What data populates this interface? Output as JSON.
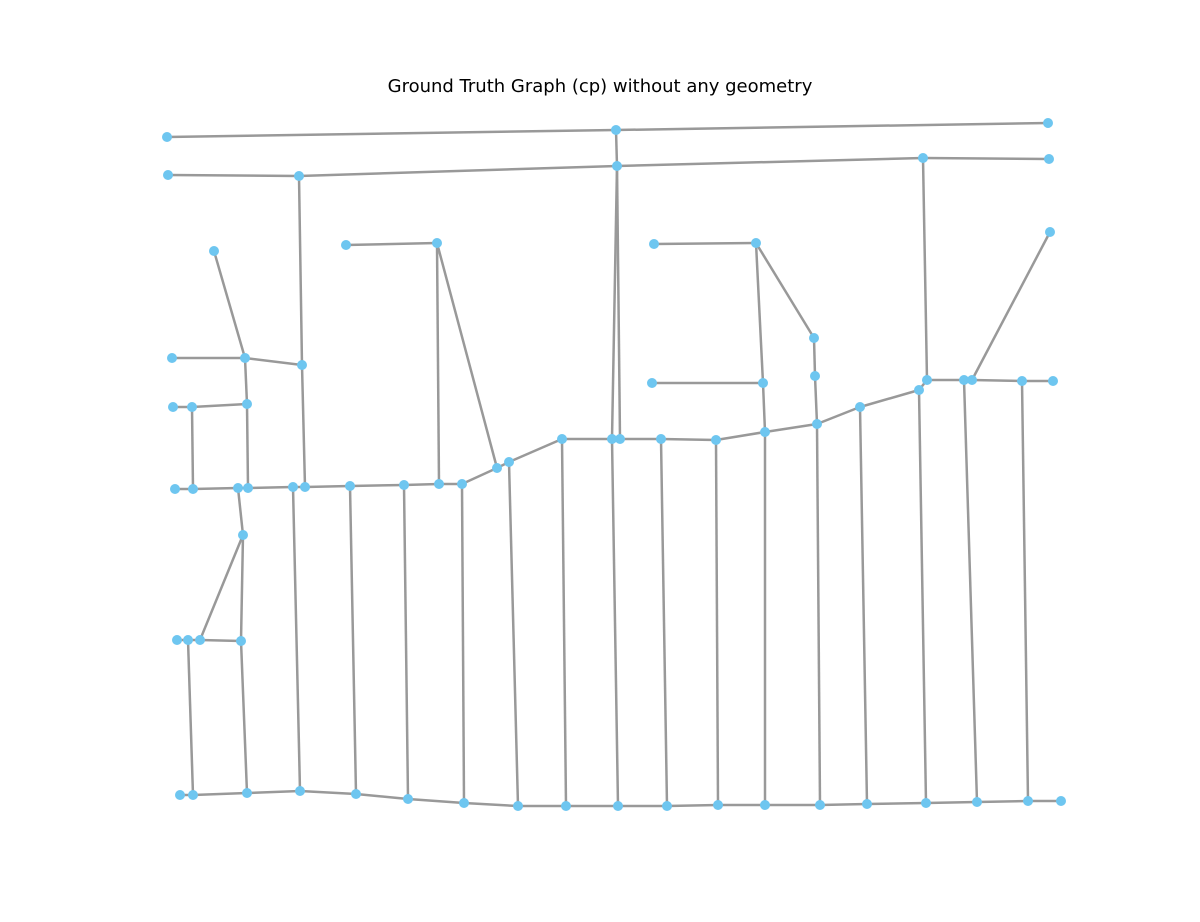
{
  "title": "Ground Truth Graph (cp) without any geometry",
  "colors": {
    "edge": "#999999",
    "node": "#6ec6f0",
    "background": "#ffffff"
  },
  "graph": {
    "nodes": [
      [
        "n1",
        167,
        137
      ],
      [
        "n2",
        616,
        130
      ],
      [
        "n3",
        1048,
        123
      ],
      [
        "n4",
        168,
        175
      ],
      [
        "n5",
        299,
        176
      ],
      [
        "n6",
        617,
        166
      ],
      [
        "n7",
        923,
        158
      ],
      [
        "n8",
        1049,
        159
      ],
      [
        "n9",
        214,
        251
      ],
      [
        "n10",
        346,
        245
      ],
      [
        "n11",
        437,
        243
      ],
      [
        "n12",
        654,
        244
      ],
      [
        "n13",
        756,
        243
      ],
      [
        "n14",
        1050,
        232
      ],
      [
        "n15",
        172,
        358
      ],
      [
        "n16",
        245,
        358
      ],
      [
        "n17",
        302,
        365
      ],
      [
        "n18",
        814,
        338
      ],
      [
        "n19",
        815,
        376
      ],
      [
        "n20",
        652,
        383
      ],
      [
        "n21",
        763,
        383
      ],
      [
        "n22",
        927,
        380
      ],
      [
        "n23",
        964,
        380
      ],
      [
        "n24",
        972,
        380
      ],
      [
        "n25",
        1022,
        381
      ],
      [
        "n26",
        1053,
        381
      ],
      [
        "n27",
        173,
        407
      ],
      [
        "n28",
        192,
        407
      ],
      [
        "n29",
        247,
        404
      ],
      [
        "n30",
        919,
        390
      ],
      [
        "n31",
        860,
        407
      ],
      [
        "n32",
        817,
        424
      ],
      [
        "n33",
        765,
        432
      ],
      [
        "n34",
        716,
        440
      ],
      [
        "n35",
        661,
        439
      ],
      [
        "n36",
        620,
        439
      ],
      [
        "n37",
        612,
        439
      ],
      [
        "n38",
        562,
        439
      ],
      [
        "n39",
        509,
        462
      ],
      [
        "n40",
        497,
        468
      ],
      [
        "n41",
        175,
        489
      ],
      [
        "n42",
        193,
        489
      ],
      [
        "n43",
        238,
        488
      ],
      [
        "n44",
        248,
        488
      ],
      [
        "n45",
        293,
        487
      ],
      [
        "n46",
        305,
        487
      ],
      [
        "n47",
        350,
        486
      ],
      [
        "n48",
        404,
        485
      ],
      [
        "n49",
        439,
        484
      ],
      [
        "n50",
        462,
        484
      ],
      [
        "n51",
        243,
        535
      ],
      [
        "n52",
        177,
        640
      ],
      [
        "n53",
        188,
        640
      ],
      [
        "n54",
        200,
        640
      ],
      [
        "n55",
        241,
        641
      ],
      [
        "n56",
        180,
        795
      ],
      [
        "n57",
        193,
        795
      ],
      [
        "n58",
        247,
        793
      ],
      [
        "n59",
        300,
        791
      ],
      [
        "n60",
        356,
        794
      ],
      [
        "n61",
        408,
        799
      ],
      [
        "n62",
        464,
        803
      ],
      [
        "n63",
        518,
        806
      ],
      [
        "n64",
        566,
        806
      ],
      [
        "n65",
        618,
        806
      ],
      [
        "n66",
        667,
        806
      ],
      [
        "n67",
        718,
        805
      ],
      [
        "n68",
        765,
        805
      ],
      [
        "n69",
        820,
        805
      ],
      [
        "n70",
        867,
        804
      ],
      [
        "n71",
        926,
        803
      ],
      [
        "n72",
        977,
        802
      ],
      [
        "n73",
        1028,
        801
      ],
      [
        "n74",
        1061,
        801
      ]
    ],
    "edges": [
      [
        "n1",
        "n2"
      ],
      [
        "n2",
        "n3"
      ],
      [
        "n2",
        "n6"
      ],
      [
        "n4",
        "n5"
      ],
      [
        "n5",
        "n6"
      ],
      [
        "n6",
        "n7"
      ],
      [
        "n7",
        "n8"
      ],
      [
        "n5",
        "n17"
      ],
      [
        "n17",
        "n16"
      ],
      [
        "n15",
        "n16"
      ],
      [
        "n9",
        "n16"
      ],
      [
        "n16",
        "n29"
      ],
      [
        "n28",
        "n29"
      ],
      [
        "n27",
        "n28"
      ],
      [
        "n28",
        "n42"
      ],
      [
        "n29",
        "n44"
      ],
      [
        "n17",
        "n46"
      ],
      [
        "n41",
        "n42"
      ],
      [
        "n42",
        "n43"
      ],
      [
        "n43",
        "n44"
      ],
      [
        "n44",
        "n45"
      ],
      [
        "n45",
        "n46"
      ],
      [
        "n46",
        "n47"
      ],
      [
        "n47",
        "n48"
      ],
      [
        "n48",
        "n49"
      ],
      [
        "n49",
        "n50"
      ],
      [
        "n50",
        "n40"
      ],
      [
        "n40",
        "n39"
      ],
      [
        "n39",
        "n38"
      ],
      [
        "n38",
        "n37"
      ],
      [
        "n37",
        "n36"
      ],
      [
        "n36",
        "n35"
      ],
      [
        "n35",
        "n34"
      ],
      [
        "n34",
        "n33"
      ],
      [
        "n33",
        "n32"
      ],
      [
        "n32",
        "n31"
      ],
      [
        "n31",
        "n30"
      ],
      [
        "n30",
        "n22"
      ],
      [
        "n10",
        "n11"
      ],
      [
        "n11",
        "n49"
      ],
      [
        "n11",
        "n40"
      ],
      [
        "n6",
        "n37"
      ],
      [
        "n6",
        "n36"
      ],
      [
        "n12",
        "n13"
      ],
      [
        "n13",
        "n18"
      ],
      [
        "n18",
        "n19"
      ],
      [
        "n13",
        "n21"
      ],
      [
        "n21",
        "n33"
      ],
      [
        "n19",
        "n32"
      ],
      [
        "n20",
        "n21"
      ],
      [
        "n7",
        "n22"
      ],
      [
        "n22",
        "n23"
      ],
      [
        "n23",
        "n24"
      ],
      [
        "n24",
        "n25"
      ],
      [
        "n25",
        "n26"
      ],
      [
        "n14",
        "n24"
      ],
      [
        "n43",
        "n51"
      ],
      [
        "n51",
        "n54"
      ],
      [
        "n51",
        "n55"
      ],
      [
        "n52",
        "n53"
      ],
      [
        "n53",
        "n54"
      ],
      [
        "n54",
        "n55"
      ],
      [
        "n53",
        "n57"
      ],
      [
        "n55",
        "n58"
      ],
      [
        "n56",
        "n57"
      ],
      [
        "n57",
        "n58"
      ],
      [
        "n58",
        "n59"
      ],
      [
        "n59",
        "n60"
      ],
      [
        "n60",
        "n61"
      ],
      [
        "n61",
        "n62"
      ],
      [
        "n62",
        "n63"
      ],
      [
        "n63",
        "n64"
      ],
      [
        "n64",
        "n65"
      ],
      [
        "n65",
        "n66"
      ],
      [
        "n66",
        "n67"
      ],
      [
        "n67",
        "n68"
      ],
      [
        "n68",
        "n69"
      ],
      [
        "n69",
        "n70"
      ],
      [
        "n70",
        "n71"
      ],
      [
        "n71",
        "n72"
      ],
      [
        "n72",
        "n73"
      ],
      [
        "n73",
        "n74"
      ],
      [
        "n45",
        "n59"
      ],
      [
        "n47",
        "n60"
      ],
      [
        "n48",
        "n61"
      ],
      [
        "n50",
        "n62"
      ],
      [
        "n39",
        "n63"
      ],
      [
        "n38",
        "n64"
      ],
      [
        "n37",
        "n65"
      ],
      [
        "n35",
        "n66"
      ],
      [
        "n34",
        "n67"
      ],
      [
        "n33",
        "n68"
      ],
      [
        "n32",
        "n69"
      ],
      [
        "n31",
        "n70"
      ],
      [
        "n30",
        "n71"
      ],
      [
        "n23",
        "n72"
      ],
      [
        "n25",
        "n73"
      ]
    ]
  }
}
